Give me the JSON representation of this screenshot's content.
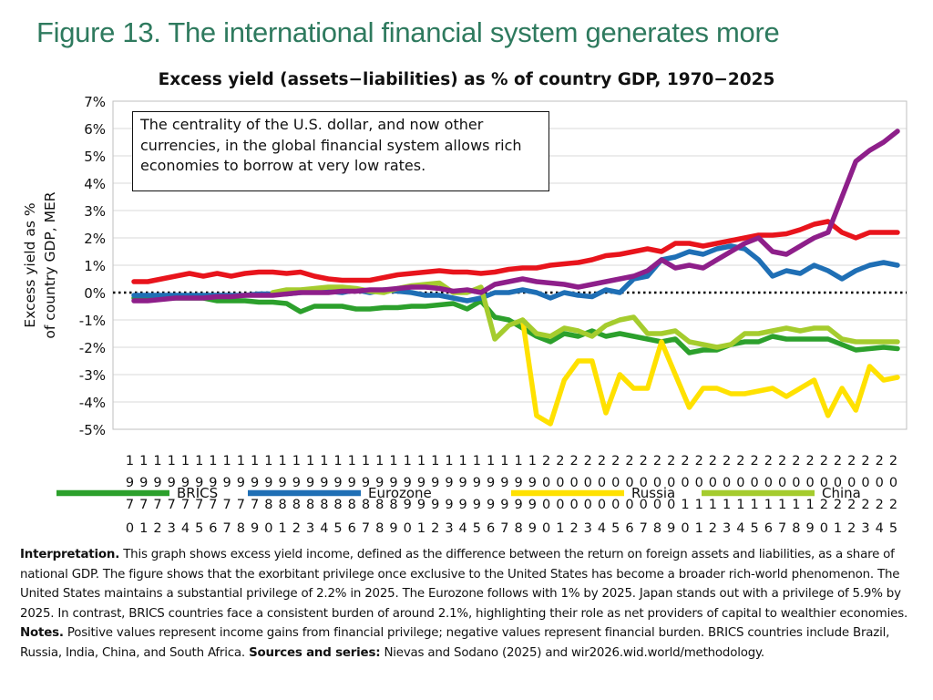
{
  "figure_heading": "Figure 13. The international financial system generates more",
  "callout_text": "The centrality of the U.S. dollar, and now other currencies, in the global financial system allows rich economies to borrow at very low rates.",
  "footer": {
    "interpretation_label": "Interpretation.",
    "interpretation_text": "This graph shows excess yield income, defined as the difference between the return on foreign assets and liabilities, as a share of national GDP. The figure shows that the exorbitant privilege once exclusive to the United States has become a broader rich-world phenomenon. The United States maintains a substantial privilege of 2.2% in 2025. The Eurozone follows with 1% by 2025. Japan stands out with a privilege of 5.9% by 2025. In contrast, BRICS countries face a consistent burden of around 2.1%, highlighting their role as net providers of capital to wealthier economies.",
    "notes_label": "Notes.",
    "notes_text": "Positive values represent income gains from financial privilege; negative values represent financial burden. BRICS countries include Brazil, Russia, India, China, and South Africa.",
    "sources_label": "Sources and series:",
    "sources_text": "Nievas and Sodano (2025) and wir2026.wid.world/methodology."
  },
  "chart_data": {
    "type": "line",
    "title": "Excess yield (assets−liabilities) as % of country GDP, 1970−2025",
    "ylabel_line1": "Excess yield as %",
    "ylabel_line2": "of country GDP, MER",
    "ylim": [
      -5,
      7
    ],
    "yticks": [
      "-5%",
      "-4%",
      "-3%",
      "-2%",
      "-1%",
      "0%",
      "1%",
      "2%",
      "3%",
      "4%",
      "5%",
      "6%",
      "7%"
    ],
    "x": [
      1970,
      1971,
      1972,
      1973,
      1974,
      1975,
      1976,
      1977,
      1978,
      1979,
      1980,
      1981,
      1982,
      1983,
      1984,
      1985,
      1986,
      1987,
      1988,
      1989,
      1990,
      1991,
      1992,
      1993,
      1994,
      1995,
      1996,
      1997,
      1998,
      1999,
      2000,
      2001,
      2002,
      2003,
      2004,
      2005,
      2006,
      2007,
      2008,
      2009,
      2010,
      2011,
      2012,
      2013,
      2014,
      2015,
      2016,
      2017,
      2018,
      2019,
      2020,
      2021,
      2022,
      2023,
      2024,
      2025
    ],
    "legend_position": "bottom",
    "zero_line": "dotted",
    "series": [
      {
        "name": "BRICS",
        "color": "#2ca02c",
        "values": [
          -0.2,
          -0.2,
          -0.2,
          -0.2,
          -0.2,
          -0.2,
          -0.3,
          -0.3,
          -0.3,
          -0.35,
          -0.35,
          -0.4,
          -0.7,
          -0.5,
          -0.5,
          -0.5,
          -0.6,
          -0.6,
          -0.55,
          -0.55,
          -0.5,
          -0.5,
          -0.45,
          -0.4,
          -0.6,
          -0.3,
          -0.9,
          -1.0,
          -1.3,
          -1.6,
          -1.8,
          -1.5,
          -1.6,
          -1.4,
          -1.6,
          -1.5,
          -1.6,
          -1.7,
          -1.8,
          -1.7,
          -2.2,
          -2.1,
          -2.1,
          -1.9,
          -1.8,
          -1.8,
          -1.6,
          -1.7,
          -1.7,
          -1.7,
          -1.7,
          -1.9,
          -2.1,
          -2.05,
          -2.0,
          -2.05
        ]
      },
      {
        "name": "Eurozone",
        "color": "#1f6fb5",
        "values": [
          -0.1,
          -0.1,
          -0.1,
          -0.1,
          -0.1,
          -0.1,
          -0.1,
          -0.1,
          -0.1,
          -0.05,
          -0.05,
          -0.05,
          0.0,
          0.05,
          0.05,
          0.0,
          0.1,
          0.0,
          0.1,
          0.05,
          0.0,
          -0.1,
          -0.1,
          -0.2,
          -0.3,
          -0.2,
          0.0,
          0.0,
          0.1,
          0.0,
          -0.2,
          0.0,
          -0.1,
          -0.15,
          0.1,
          0.0,
          0.5,
          0.6,
          1.2,
          1.3,
          1.5,
          1.4,
          1.6,
          1.7,
          1.6,
          1.2,
          0.6,
          0.8,
          0.7,
          1.0,
          0.8,
          0.5,
          0.8,
          1.0,
          1.1,
          1.0
        ]
      },
      {
        "name": "Russia",
        "color": "#ffe100",
        "values": [
          null,
          null,
          null,
          null,
          null,
          null,
          null,
          null,
          null,
          null,
          null,
          null,
          null,
          null,
          null,
          null,
          null,
          null,
          null,
          null,
          null,
          null,
          null,
          null,
          null,
          null,
          null,
          null,
          -1.0,
          -4.5,
          -4.8,
          -3.2,
          -2.5,
          -2.5,
          -4.4,
          -3.0,
          -3.5,
          -3.5,
          -1.8,
          -3.0,
          -4.2,
          -3.5,
          -3.5,
          -3.7,
          -3.7,
          -3.6,
          -3.5,
          -3.8,
          -3.5,
          -3.2,
          -4.5,
          -3.5,
          -4.3,
          -2.7,
          -3.2,
          -3.1
        ]
      },
      {
        "name": "China",
        "color": "#a5cc2e",
        "values": [
          null,
          null,
          null,
          null,
          null,
          null,
          null,
          null,
          null,
          null,
          0.0,
          0.1,
          0.1,
          0.15,
          0.2,
          0.2,
          0.15,
          0.05,
          0.0,
          0.15,
          0.25,
          0.3,
          0.35,
          0.0,
          0.0,
          0.2,
          -1.7,
          -1.2,
          -1.0,
          -1.5,
          -1.6,
          -1.3,
          -1.4,
          -1.6,
          -1.2,
          -1.0,
          -0.9,
          -1.5,
          -1.5,
          -1.4,
          -1.8,
          -1.9,
          -2.0,
          -1.9,
          -1.5,
          -1.5,
          -1.4,
          -1.3,
          -1.4,
          -1.3,
          -1.3,
          -1.7,
          -1.8,
          -1.8,
          -1.8,
          -1.8
        ]
      },
      {
        "name": "",
        "color": "#e8141c",
        "values": [
          0.4,
          0.4,
          0.5,
          0.6,
          0.7,
          0.6,
          0.7,
          0.6,
          0.7,
          0.75,
          0.75,
          0.7,
          0.75,
          0.6,
          0.5,
          0.45,
          0.45,
          0.45,
          0.55,
          0.65,
          0.7,
          0.75,
          0.8,
          0.75,
          0.75,
          0.7,
          0.75,
          0.85,
          0.9,
          0.9,
          1.0,
          1.05,
          1.1,
          1.2,
          1.35,
          1.4,
          1.5,
          1.6,
          1.5,
          1.8,
          1.8,
          1.7,
          1.8,
          1.9,
          2.0,
          2.1,
          2.1,
          2.15,
          2.3,
          2.5,
          2.6,
          2.2,
          2.0,
          2.2,
          2.2,
          2.2
        ]
      },
      {
        "name": "",
        "color": "#8e1f8a",
        "values": [
          -0.3,
          -0.3,
          -0.25,
          -0.2,
          -0.2,
          -0.2,
          -0.15,
          -0.15,
          -0.1,
          -0.1,
          -0.1,
          -0.05,
          0.0,
          0.0,
          0.0,
          0.05,
          0.05,
          0.1,
          0.1,
          0.15,
          0.2,
          0.2,
          0.15,
          0.05,
          0.1,
          0.0,
          0.3,
          0.4,
          0.5,
          0.4,
          0.35,
          0.3,
          0.2,
          0.3,
          0.4,
          0.5,
          0.6,
          0.8,
          1.2,
          0.9,
          1.0,
          0.9,
          1.2,
          1.5,
          1.8,
          2.0,
          1.5,
          1.4,
          1.7,
          2.0,
          2.2,
          3.5,
          4.8,
          5.2,
          5.5,
          5.9
        ]
      }
    ]
  }
}
